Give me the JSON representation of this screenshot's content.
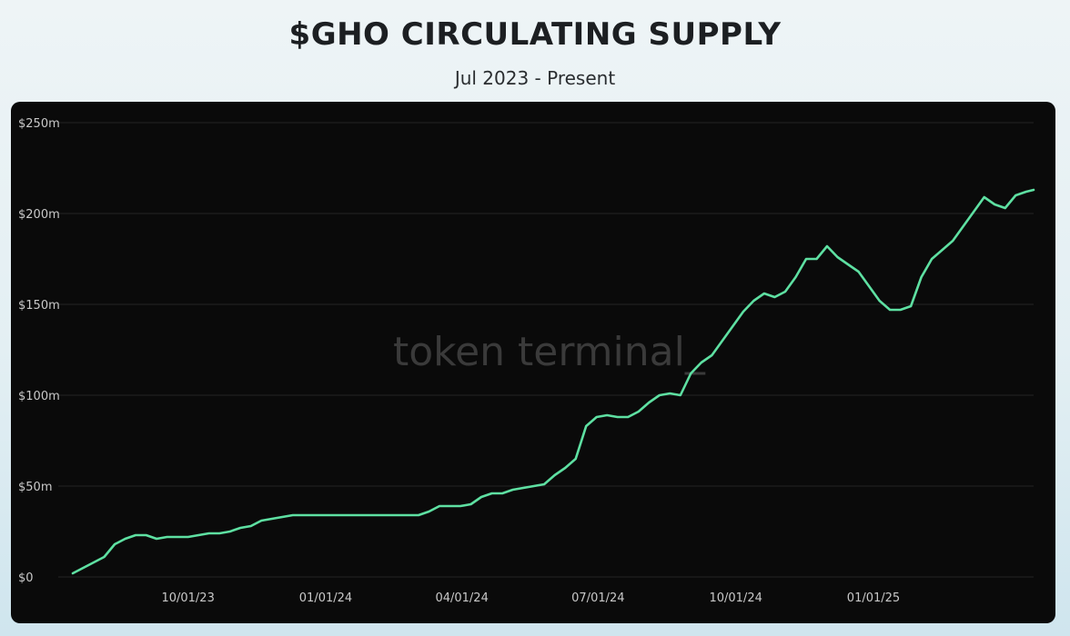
{
  "header": {
    "title": "$GHO CIRCULATING SUPPLY",
    "subtitle": "Jul 2023 - Present"
  },
  "watermark": "token terminal_",
  "colors": {
    "line": "#5ee0a2",
    "panel": "#0a0a0a",
    "grid": "#242424",
    "tick_text": "#c9c9c9"
  },
  "chart_data": {
    "type": "line",
    "title": "$GHO CIRCULATING SUPPLY",
    "subtitle": "Jul 2023 - Present",
    "xlabel": "",
    "ylabel": "",
    "ylim": [
      0,
      250
    ],
    "y_unit": "m",
    "yticks": [
      {
        "value": 0,
        "label": "$0"
      },
      {
        "value": 50,
        "label": "$50m"
      },
      {
        "value": 100,
        "label": "$100m"
      },
      {
        "value": 150,
        "label": "$150m"
      },
      {
        "value": 200,
        "label": "$200m"
      },
      {
        "value": 250,
        "label": "$250m"
      }
    ],
    "xlim": [
      "2023-07-16",
      "2025-04-18"
    ],
    "xticks": [
      {
        "date": "2023-10-01",
        "label": "10/01/23"
      },
      {
        "date": "2024-01-01",
        "label": "01/01/24"
      },
      {
        "date": "2024-04-01",
        "label": "04/01/24"
      },
      {
        "date": "2024-07-01",
        "label": "07/01/24"
      },
      {
        "date": "2024-10-01",
        "label": "10/01/24"
      },
      {
        "date": "2025-01-01",
        "label": "01/01/25"
      }
    ],
    "grid": true,
    "legend": "none",
    "series": [
      {
        "values": [
          [
            "2023-07-16",
            2
          ],
          [
            "2023-07-23",
            5
          ],
          [
            "2023-07-30",
            8
          ],
          [
            "2023-08-06",
            11
          ],
          [
            "2023-08-13",
            18
          ],
          [
            "2023-08-20",
            21
          ],
          [
            "2023-08-27",
            23
          ],
          [
            "2023-09-03",
            23
          ],
          [
            "2023-09-10",
            21
          ],
          [
            "2023-09-17",
            22
          ],
          [
            "2023-09-24",
            22
          ],
          [
            "2023-10-01",
            22
          ],
          [
            "2023-10-08",
            23
          ],
          [
            "2023-10-15",
            24
          ],
          [
            "2023-10-22",
            24
          ],
          [
            "2023-10-29",
            25
          ],
          [
            "2023-11-05",
            27
          ],
          [
            "2023-11-12",
            28
          ],
          [
            "2023-11-19",
            31
          ],
          [
            "2023-11-26",
            32
          ],
          [
            "2023-12-03",
            33
          ],
          [
            "2023-12-10",
            34
          ],
          [
            "2023-12-17",
            34
          ],
          [
            "2023-12-31",
            34
          ],
          [
            "2024-01-07",
            34
          ],
          [
            "2024-01-21",
            34
          ],
          [
            "2024-02-04",
            34
          ],
          [
            "2024-02-18",
            34
          ],
          [
            "2024-03-03",
            34
          ],
          [
            "2024-03-10",
            36
          ],
          [
            "2024-03-17",
            39
          ],
          [
            "2024-03-24",
            39
          ],
          [
            "2024-03-31",
            39
          ],
          [
            "2024-04-07",
            40
          ],
          [
            "2024-04-14",
            44
          ],
          [
            "2024-04-21",
            46
          ],
          [
            "2024-04-28",
            46
          ],
          [
            "2024-05-05",
            48
          ],
          [
            "2024-05-12",
            49
          ],
          [
            "2024-05-19",
            50
          ],
          [
            "2024-05-26",
            51
          ],
          [
            "2024-06-02",
            56
          ],
          [
            "2024-06-09",
            60
          ],
          [
            "2024-06-16",
            65
          ],
          [
            "2024-06-23",
            83
          ],
          [
            "2024-06-30",
            88
          ],
          [
            "2024-07-07",
            89
          ],
          [
            "2024-07-14",
            88
          ],
          [
            "2024-07-21",
            88
          ],
          [
            "2024-07-28",
            91
          ],
          [
            "2024-08-04",
            96
          ],
          [
            "2024-08-11",
            100
          ],
          [
            "2024-08-18",
            101
          ],
          [
            "2024-08-25",
            100
          ],
          [
            "2024-09-01",
            112
          ],
          [
            "2024-09-08",
            118
          ],
          [
            "2024-09-15",
            122
          ],
          [
            "2024-09-22",
            130
          ],
          [
            "2024-09-29",
            138
          ],
          [
            "2024-10-06",
            146
          ],
          [
            "2024-10-13",
            152
          ],
          [
            "2024-10-20",
            156
          ],
          [
            "2024-10-27",
            154
          ],
          [
            "2024-11-03",
            157
          ],
          [
            "2024-11-10",
            165
          ],
          [
            "2024-11-17",
            175
          ],
          [
            "2024-11-24",
            175
          ],
          [
            "2024-12-01",
            182
          ],
          [
            "2024-12-08",
            176
          ],
          [
            "2024-12-15",
            172
          ],
          [
            "2024-12-22",
            168
          ],
          [
            "2024-12-29",
            160
          ],
          [
            "2025-01-05",
            152
          ],
          [
            "2025-01-12",
            147
          ],
          [
            "2025-01-19",
            147
          ],
          [
            "2025-01-26",
            149
          ],
          [
            "2025-02-02",
            165
          ],
          [
            "2025-02-09",
            175
          ],
          [
            "2025-02-16",
            180
          ],
          [
            "2025-02-23",
            185
          ],
          [
            "2025-03-02",
            193
          ],
          [
            "2025-03-09",
            201
          ],
          [
            "2025-03-16",
            209
          ],
          [
            "2025-03-23",
            205
          ],
          [
            "2025-03-30",
            203
          ],
          [
            "2025-04-06",
            210
          ],
          [
            "2025-04-13",
            212
          ],
          [
            "2025-04-18",
            213
          ]
        ]
      }
    ]
  }
}
